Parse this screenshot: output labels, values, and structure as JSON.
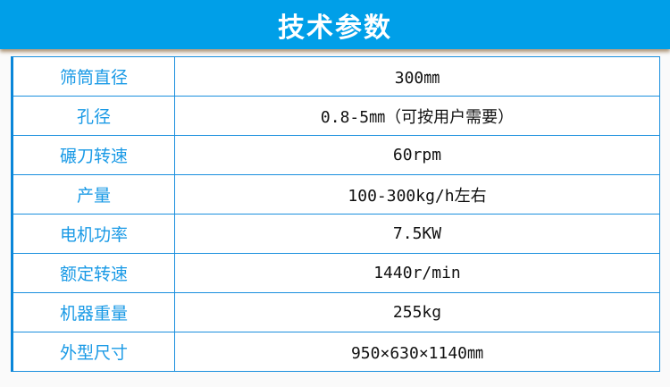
{
  "title": "技术参数",
  "rows": [
    {
      "label": "筛筒直径",
      "value": "300㎜"
    },
    {
      "label": "孔径",
      "value": "0.8-5㎜（可按用户需要）"
    },
    {
      "label": "碾刀转速",
      "value": "60rpm"
    },
    {
      "label": "产量",
      "value": "100-300kg/h左右"
    },
    {
      "label": "电机功率",
      "value": "7.5KW"
    },
    {
      "label": "额定转速",
      "value": "1440r/min"
    },
    {
      "label": "机器重量",
      "value": "255kg"
    },
    {
      "label": "外型尺寸",
      "value": "950×630×1140㎜"
    }
  ]
}
